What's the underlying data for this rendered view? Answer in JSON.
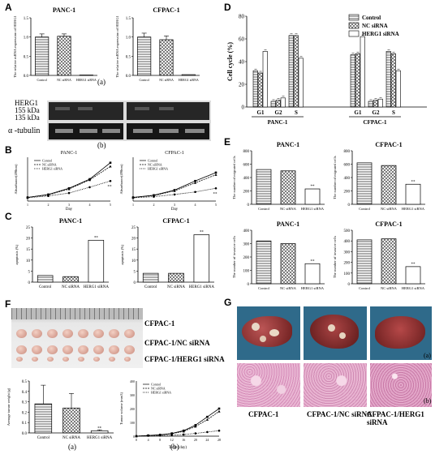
{
  "panels": {
    "A": {
      "label": "A",
      "sub_a": "(a)",
      "sub_b": "(b)",
      "charts": [
        {
          "title": "PANC-1",
          "ylabel": "The relative mRNA expression of HERG1",
          "categories": [
            "Control",
            "NC siRNA",
            "HERG1 siRNA"
          ],
          "values": [
            1.0,
            1.02,
            0.01
          ],
          "errors": [
            0.08,
            0.06,
            0.0
          ],
          "ylim": [
            0,
            1.5
          ],
          "ticks": [
            "0.0",
            "0.5",
            "1.0",
            "1.5"
          ]
        },
        {
          "title": "CFPAC-1",
          "ylabel": "The relative mRNA expression of HERG1",
          "categories": [
            "Control",
            "NC siRNA",
            "HERG1 siRNA"
          ],
          "values": [
            1.0,
            0.93,
            0.02
          ],
          "errors": [
            0.1,
            0.1,
            0.0
          ],
          "ylim": [
            0,
            1.5
          ],
          "ticks": [
            "0.0",
            "0.5",
            "1.0",
            "1.5"
          ]
        }
      ],
      "blot": {
        "herg": "HERG1",
        "kda155": "155 kDa",
        "kda135": "135 kDa",
        "tubulin": "α -tubulin"
      }
    },
    "B": {
      "label": "B",
      "charts": [
        {
          "title": "PANC-1",
          "ylabel": "Absorbance(490nm)",
          "xlabel": "Day",
          "x": [
            1,
            2,
            3,
            4,
            5
          ],
          "ylim": [
            0,
            1.2
          ],
          "series": [
            {
              "name": "Control",
              "values": [
                0.1,
                0.18,
                0.35,
                0.6,
                1.05
              ]
            },
            {
              "name": "NC siRNA",
              "values": [
                0.1,
                0.17,
                0.33,
                0.58,
                0.95
              ]
            },
            {
              "name": "HERG1 siRNA",
              "values": [
                0.09,
                0.14,
                0.22,
                0.38,
                0.55
              ]
            }
          ],
          "sig": "**"
        },
        {
          "title": "CFPAC-1",
          "ylabel": "Absorbance(490nm)",
          "xlabel": "Day",
          "x": [
            1,
            2,
            3,
            4,
            5
          ],
          "ylim": [
            0,
            1.2
          ],
          "series": [
            {
              "name": "Control",
              "values": [
                0.1,
                0.16,
                0.3,
                0.55,
                0.78
              ]
            },
            {
              "name": "NC siRNA",
              "values": [
                0.1,
                0.15,
                0.28,
                0.5,
                0.72
              ]
            },
            {
              "name": "HERG1 siRNA",
              "values": [
                0.09,
                0.12,
                0.18,
                0.25,
                0.35
              ]
            }
          ],
          "sig": "**"
        }
      ]
    },
    "C": {
      "label": "C",
      "charts": [
        {
          "title": "PANC-1",
          "ylabel": "apoptosis (%)",
          "categories": [
            "Control",
            "NC siRNA",
            "HERG1 siRNA"
          ],
          "values": [
            3,
            2.5,
            19
          ],
          "ylim": [
            0,
            25
          ],
          "ticks": [
            "0",
            "5",
            "10",
            "15",
            "20",
            "25"
          ],
          "sig": "**"
        },
        {
          "title": "CFPAC-1",
          "ylabel": "apoptosis (%)",
          "categories": [
            "Control",
            "NC siRNA",
            "HERG1 siRNA"
          ],
          "values": [
            4,
            4,
            21.5
          ],
          "ylim": [
            0,
            25
          ],
          "ticks": [
            "0",
            "5",
            "10",
            "15",
            "20",
            "25"
          ],
          "sig": "**"
        }
      ]
    },
    "D": {
      "label": "D",
      "ylabel": "Cell cycle (%)",
      "legend": [
        "Control",
        "NC siRNA",
        "HERG1 siRNA"
      ],
      "groups": [
        {
          "name": "PANC-1",
          "phases": [
            "G1",
            "G2",
            "S"
          ],
          "values": [
            [
              32,
              30,
              49
            ],
            [
              5,
              6,
              8
            ],
            [
              63,
              63,
              43
            ]
          ]
        },
        {
          "name": "CFPAC-1",
          "phases": [
            "G1",
            "G2",
            "S"
          ],
          "values": [
            [
              46,
              47,
              62
            ],
            [
              5,
              6,
              7
            ],
            [
              49,
              47,
              32
            ]
          ]
        }
      ],
      "ylim": [
        0,
        80
      ],
      "ticks": [
        "0",
        "20",
        "40",
        "60",
        "80"
      ]
    },
    "E": {
      "label": "E",
      "charts": [
        {
          "title": "PANC-1",
          "ylabel": "The number of migrated cells",
          "categories": [
            "Control",
            "NC siRNA",
            "HERG1 siRNA"
          ],
          "values": [
            520,
            500,
            230
          ],
          "ylim": [
            0,
            800
          ],
          "ticks": [
            "0",
            "200",
            "400",
            "600",
            "800"
          ],
          "sig": "**"
        },
        {
          "title": "CFPAC-1",
          "ylabel": "The number of migrated cells",
          "categories": [
            "Control",
            "NC siRNA",
            "HERG1 siRNA"
          ],
          "values": [
            620,
            580,
            300
          ],
          "ylim": [
            0,
            800
          ],
          "ticks": [
            "0",
            "200",
            "400",
            "600",
            "800"
          ],
          "sig": "**"
        },
        {
          "title": "PANC-1",
          "ylabel": "The number of invasive cells",
          "categories": [
            "Control",
            "NC siRNA",
            "HERG1 siRNA"
          ],
          "values": [
            320,
            300,
            150
          ],
          "ylim": [
            0,
            400
          ],
          "ticks": [
            "0",
            "100",
            "200",
            "300",
            "400"
          ],
          "sig": "**"
        },
        {
          "title": "CFPAC-1",
          "ylabel": "The number of invasive cells",
          "categories": [
            "Control",
            "NC siRNA",
            "HERG1 siRNA"
          ],
          "values": [
            410,
            420,
            160
          ],
          "ylim": [
            0,
            500
          ],
          "ticks": [
            "0",
            "100",
            "200",
            "300",
            "400",
            "500"
          ],
          "sig": "**"
        }
      ]
    },
    "F": {
      "label": "F",
      "rows": [
        "CFPAC-1",
        "CFPAC-1/NC siRNA",
        "CFPAC-1/HERG1 siRNA"
      ],
      "sub_a": "(a)",
      "sub_b": "(b)",
      "bar": {
        "ylabel": "Average tumor weight (g)",
        "categories": [
          "Control",
          "NC siRNA",
          "HERG1 siRNA"
        ],
        "values": [
          0.28,
          0.24,
          0.02
        ],
        "errors": [
          0.18,
          0.14,
          0.01
        ],
        "ylim": [
          0,
          0.5
        ],
        "ticks": [
          "0.0",
          "0.1",
          "0.2",
          "0.3",
          "0.4",
          "0.5"
        ],
        "sig": "**"
      },
      "line": {
        "ylabel": "Tumor volume (mm3)",
        "xlabel": "Time (day)",
        "x": [
          0,
          4,
          8,
          12,
          16,
          20,
          24,
          28
        ],
        "ylim": [
          0,
          400
        ],
        "ticks": [
          "0",
          "100",
          "200",
          "300",
          "400"
        ],
        "series": [
          {
            "name": "Control",
            "values": [
              0,
              5,
              10,
              20,
              40,
              80,
              140,
              200
            ]
          },
          {
            "name": "NC siRNA",
            "values": [
              0,
              5,
              9,
              18,
              35,
              70,
              120,
              180
            ]
          },
          {
            "name": "HERG1 siRNA",
            "values": [
              0,
              3,
              5,
              8,
              12,
              20,
              30,
              40
            ]
          }
        ]
      }
    },
    "G": {
      "label": "G",
      "sub_a": "(a)",
      "sub_b": "(b)",
      "captions": [
        "CFPAC-1",
        "CFPAC-1/NC siRNA",
        "CFPAC-1/HERG1 siRNA"
      ]
    }
  }
}
